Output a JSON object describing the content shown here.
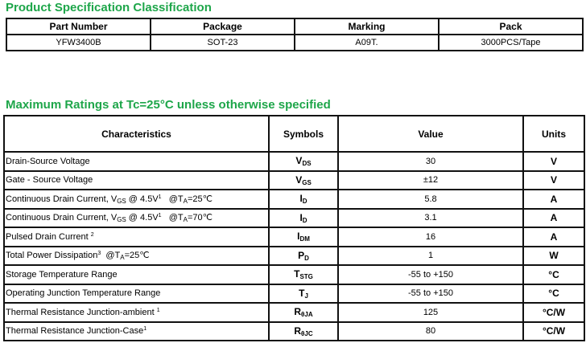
{
  "spec": {
    "title": "Product Specification Classification",
    "headers": [
      "Part Number",
      "Package",
      "Marking",
      "Pack"
    ],
    "row": [
      "YFW3400B",
      "SOT-23",
      "A09T.",
      "3000PCS/Tape"
    ]
  },
  "ratings": {
    "title": "Maximum Ratings at Tc=25°C unless otherwise specified",
    "headers": [
      "Characteristics",
      "Symbols",
      "Value",
      "Units"
    ],
    "rows": [
      {
        "ch": [
          {
            "t": "Drain-Source Voltage"
          }
        ],
        "sym": "V",
        "sym_sub": "DS",
        "value": "30",
        "unit": "V"
      },
      {
        "ch": [
          {
            "t": "Gate - Source Voltage"
          }
        ],
        "sym": "V",
        "sym_sub": "GS",
        "value": "±12",
        "unit": "V"
      },
      {
        "ch": [
          {
            "t": "Continuous Drain Current, V"
          },
          {
            "t": "GS",
            "s": "sub"
          },
          {
            "t": " @ 4.5V"
          },
          {
            "t": "1",
            "s": "sup"
          },
          {
            "t": "   @T"
          },
          {
            "t": "A",
            "s": "sub"
          },
          {
            "t": "=25℃"
          }
        ],
        "sym": "I",
        "sym_sub": "D",
        "value": "5.8",
        "unit": "A"
      },
      {
        "ch": [
          {
            "t": "Continuous Drain Current, V"
          },
          {
            "t": "GS",
            "s": "sub"
          },
          {
            "t": " @ 4.5V"
          },
          {
            "t": "1",
            "s": "sup"
          },
          {
            "t": "   @T"
          },
          {
            "t": "A",
            "s": "sub"
          },
          {
            "t": "=70℃"
          }
        ],
        "sym": "I",
        "sym_sub": "D",
        "value": "3.1",
        "unit": "A"
      },
      {
        "ch": [
          {
            "t": "Pulsed Drain Current "
          },
          {
            "t": "2",
            "s": "sup"
          }
        ],
        "sym": "I",
        "sym_sub": "DM",
        "value": "16",
        "unit": "A"
      },
      {
        "ch": [
          {
            "t": "Total Power Dissipation"
          },
          {
            "t": "3",
            "s": "sup"
          },
          {
            "t": "  @T"
          },
          {
            "t": "A",
            "s": "sub"
          },
          {
            "t": "=25℃"
          }
        ],
        "sym": "P",
        "sym_sub": "D",
        "value": "1",
        "unit": "W"
      },
      {
        "ch": [
          {
            "t": "Storage Temperature Range"
          }
        ],
        "sym": "T",
        "sym_sub": "STG",
        "value": "-55 to +150",
        "unit": "°C"
      },
      {
        "ch": [
          {
            "t": "Operating Junction Temperature Range"
          }
        ],
        "sym": "T",
        "sym_sub": "J",
        "value": "-55 to +150",
        "unit": "°C"
      },
      {
        "ch": [
          {
            "t": "Thermal Resistance Junction-ambient "
          },
          {
            "t": "1",
            "s": "sup"
          }
        ],
        "sym": "R",
        "sym_sub": "θJA",
        "value": "125",
        "unit": "°C/W"
      },
      {
        "ch": [
          {
            "t": "Thermal Resistance Junction-Case"
          },
          {
            "t": "1",
            "s": "sup"
          }
        ],
        "sym": "R",
        "sym_sub": "θJC",
        "value": "80",
        "unit": "°C/W"
      }
    ]
  }
}
